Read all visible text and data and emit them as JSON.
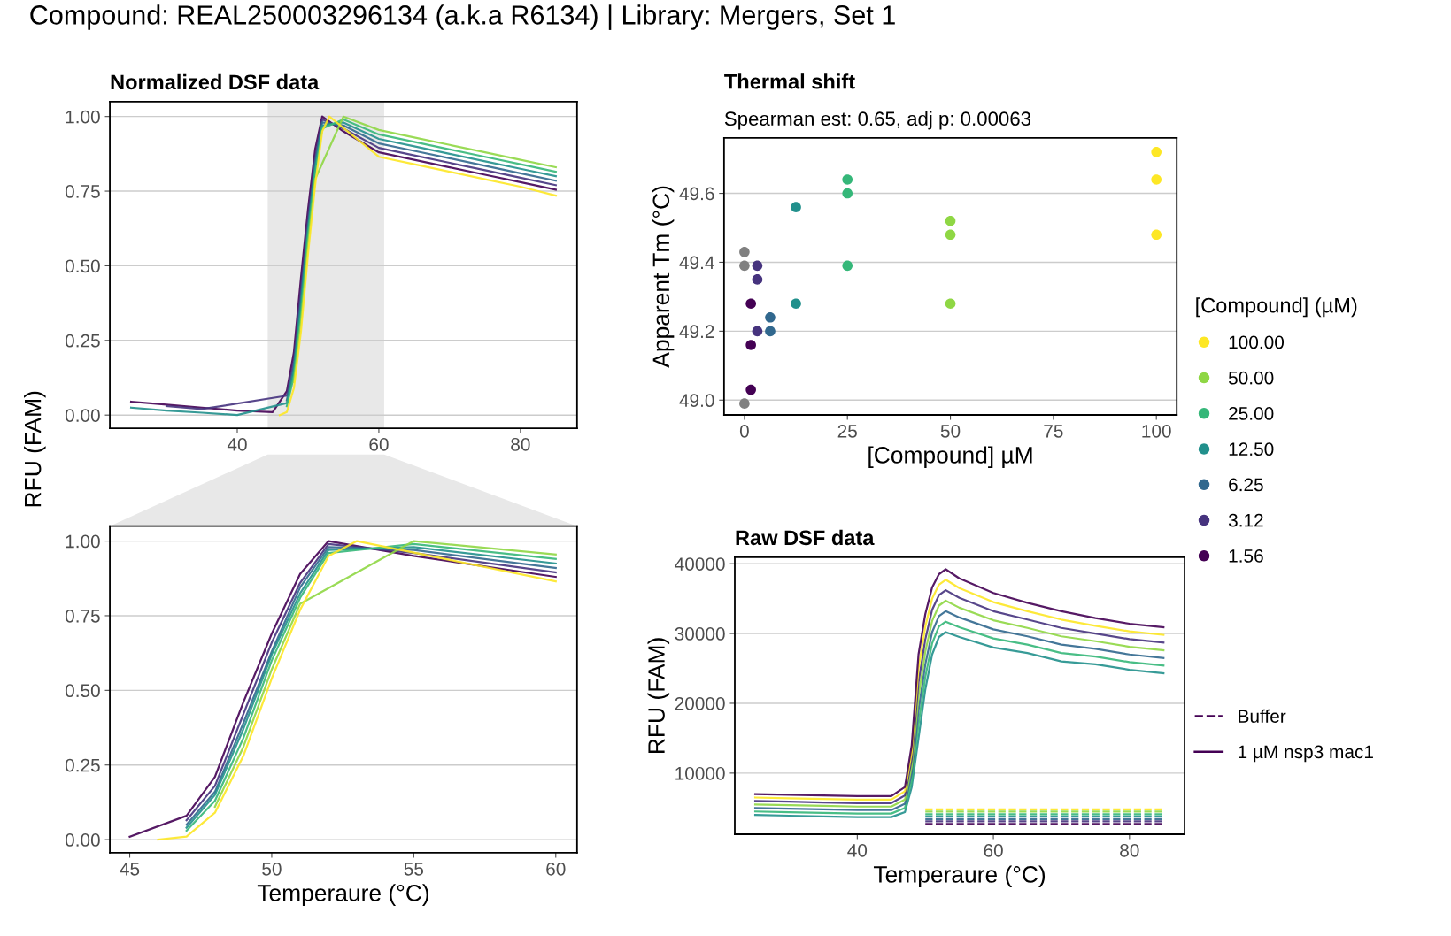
{
  "chart_data": [
    {
      "type": "line",
      "title": "Normalized DSF data",
      "ylabel": "RFU (FAM)",
      "annotations": [
        "Compound: REAL250003296134 (a.k.a R6134) | Library: Mergers, Set 1"
      ],
      "series": [
        {
          "color": "#440154",
          "x": [
            25,
            30,
            35,
            40,
            45,
            47,
            48,
            49,
            50,
            51,
            52,
            55,
            60,
            65,
            70,
            75,
            80,
            85
          ],
          "values": [
            0.045,
            0.035,
            0.025,
            0.015,
            0.01,
            0.08,
            0.21,
            0.46,
            0.69,
            0.89,
            1.0,
            0.95,
            0.88,
            0.855,
            0.83,
            0.805,
            0.78,
            0.755
          ]
        },
        {
          "color": "#46337e",
          "x": [
            30,
            35,
            47,
            48,
            49,
            50,
            51,
            52,
            55,
            60,
            65,
            70,
            75,
            80,
            85
          ],
          "values": [
            0.03,
            0.02,
            0.065,
            0.18,
            0.42,
            0.66,
            0.86,
            0.99,
            0.96,
            0.895,
            0.87,
            0.845,
            0.82,
            0.795,
            0.77
          ]
        },
        {
          "color": "#31688e",
          "x": [
            47,
            48,
            49,
            50,
            51,
            52,
            55,
            60,
            65,
            70,
            75,
            80,
            85
          ],
          "values": [
            0.05,
            0.16,
            0.39,
            0.63,
            0.845,
            0.98,
            0.97,
            0.91,
            0.885,
            0.86,
            0.835,
            0.81,
            0.785
          ]
        },
        {
          "color": "#21908c",
          "x": [
            25,
            30,
            35,
            40,
            47,
            48,
            49,
            50,
            51,
            52,
            55,
            60,
            65,
            70,
            75,
            80,
            85
          ],
          "values": [
            0.025,
            0.015,
            0.008,
            0.0,
            0.04,
            0.15,
            0.37,
            0.62,
            0.825,
            0.97,
            0.98,
            0.925,
            0.9,
            0.875,
            0.85,
            0.825,
            0.8
          ]
        },
        {
          "color": "#35b779",
          "x": [
            47,
            48,
            49,
            50,
            51,
            52,
            55,
            60,
            65,
            70,
            75,
            80,
            85
          ],
          "values": [
            0.03,
            0.13,
            0.34,
            0.6,
            0.81,
            0.96,
            0.99,
            0.94,
            0.915,
            0.89,
            0.865,
            0.84,
            0.815
          ]
        },
        {
          "color": "#8fd744",
          "x": [
            48,
            49,
            50,
            51,
            55,
            60,
            65,
            70,
            75,
            80,
            85
          ],
          "values": [
            0.11,
            0.31,
            0.57,
            0.79,
            1.0,
            0.955,
            0.93,
            0.905,
            0.88,
            0.855,
            0.83
          ]
        },
        {
          "color": "#fde725",
          "x": [
            46,
            47,
            48,
            49,
            50,
            51,
            52,
            53,
            60,
            65,
            70,
            75,
            80,
            85
          ],
          "values": [
            0.0,
            0.01,
            0.09,
            0.28,
            0.54,
            0.77,
            0.95,
            1.0,
            0.865,
            0.84,
            0.815,
            0.79,
            0.765,
            0.735
          ]
        }
      ],
      "xlim": [
        22,
        88
      ],
      "xticks": [
        40,
        60,
        80
      ],
      "ylim": [
        -0.044,
        1.05
      ],
      "yticks": [
        {
          "value": 0,
          "label": "0.00"
        },
        {
          "value": 0.25,
          "label": "0.25"
        },
        {
          "value": 0.5,
          "label": "0.50"
        },
        {
          "value": 0.75,
          "label": "0.75"
        },
        {
          "value": 1,
          "label": "1.00"
        }
      ],
      "bands": [
        {
          "axis": "x",
          "from": 44.3,
          "to": 60.75,
          "color": "#e8e8e8"
        }
      ],
      "grid": "y"
    },
    {
      "type": "line",
      "xlabel": "Temperaure (°C)",
      "series": [
        {
          "color": "#440154",
          "x": [
            45,
            47,
            48,
            49,
            50,
            51,
            52,
            55,
            60
          ],
          "values": [
            0.01,
            0.08,
            0.21,
            0.46,
            0.69,
            0.89,
            1.0,
            0.95,
            0.88
          ]
        },
        {
          "color": "#46337e",
          "x": [
            47,
            48,
            49,
            50,
            51,
            52,
            55,
            60
          ],
          "values": [
            0.065,
            0.18,
            0.42,
            0.66,
            0.86,
            0.99,
            0.96,
            0.895
          ]
        },
        {
          "color": "#31688e",
          "x": [
            47,
            48,
            49,
            50,
            51,
            52,
            55,
            60
          ],
          "values": [
            0.05,
            0.16,
            0.39,
            0.63,
            0.845,
            0.98,
            0.97,
            0.91
          ]
        },
        {
          "color": "#21908c",
          "x": [
            47,
            48,
            49,
            50,
            51,
            52,
            55,
            60
          ],
          "values": [
            0.04,
            0.15,
            0.37,
            0.62,
            0.825,
            0.97,
            0.98,
            0.925
          ]
        },
        {
          "color": "#35b779",
          "x": [
            47,
            48,
            49,
            50,
            51,
            52,
            55,
            60
          ],
          "values": [
            0.03,
            0.13,
            0.34,
            0.6,
            0.81,
            0.96,
            0.99,
            0.94
          ]
        },
        {
          "color": "#8fd744",
          "x": [
            48,
            49,
            50,
            51,
            55,
            60
          ],
          "values": [
            0.11,
            0.31,
            0.57,
            0.79,
            1.0,
            0.955
          ]
        },
        {
          "color": "#fde725",
          "x": [
            46,
            47,
            48,
            49,
            50,
            51,
            52,
            53,
            60
          ],
          "values": [
            0.0,
            0.01,
            0.09,
            0.28,
            0.54,
            0.77,
            0.95,
            1.0,
            0.865
          ]
        }
      ],
      "xlim": [
        44.3,
        60.75
      ],
      "xticks": [
        45,
        50,
        55,
        60
      ],
      "ylim": [
        -0.044,
        1.05
      ],
      "yticks": [
        {
          "value": 0,
          "label": "0.00"
        },
        {
          "value": 0.25,
          "label": "0.25"
        },
        {
          "value": 0.5,
          "label": "0.50"
        },
        {
          "value": 0.75,
          "label": "0.75"
        },
        {
          "value": 1,
          "label": "1.00"
        }
      ],
      "grid": "y"
    },
    {
      "type": "scatter",
      "title": "Thermal shift",
      "subtitle": "Spearman est: 0.65, adj p: 0.00063",
      "xlabel": "[Compound] µM",
      "ylabel": "Apparent Tm (°C)",
      "legend_title": "[Compound] (µM)",
      "legend": "right",
      "marker": "circle",
      "series": [
        {
          "name": "100.00",
          "color": "#fde725",
          "x": [
            100,
            100,
            100
          ],
          "values": [
            49.72,
            49.64,
            49.48
          ]
        },
        {
          "name": "50.00",
          "color": "#8fd744",
          "x": [
            50,
            50,
            50
          ],
          "values": [
            49.52,
            49.48,
            49.28
          ]
        },
        {
          "name": "25.00",
          "color": "#35b779",
          "x": [
            25,
            25,
            25
          ],
          "values": [
            49.64,
            49.6,
            49.39
          ]
        },
        {
          "name": "12.50",
          "color": "#21908c",
          "x": [
            12.5,
            12.5
          ],
          "values": [
            49.56,
            49.28
          ]
        },
        {
          "name": "6.25",
          "color": "#31688e",
          "x": [
            6.25,
            6.25
          ],
          "values": [
            49.24,
            49.2
          ]
        },
        {
          "name": "3.12",
          "color": "#46337e",
          "x": [
            3.12,
            3.12,
            3.12
          ],
          "values": [
            49.39,
            49.35,
            49.2
          ]
        },
        {
          "name": "1.56",
          "color": "#440154",
          "x": [
            1.56,
            1.56,
            1.56
          ],
          "values": [
            49.28,
            49.16,
            49.03
          ]
        },
        {
          "color": "#808080",
          "x": [
            0,
            0,
            0
          ],
          "values": [
            49.43,
            49.39,
            48.99
          ]
        }
      ],
      "xlim": [
        -4.95,
        104.95
      ],
      "xticks": [
        0,
        25,
        50,
        75,
        100
      ],
      "ylim": [
        48.957,
        49.761
      ],
      "yticks": [
        {
          "value": 49.0,
          "label": "49.0"
        },
        {
          "value": 49.2,
          "label": "49.2"
        },
        {
          "value": 49.4,
          "label": "49.4"
        },
        {
          "value": 49.6,
          "label": "49.6"
        }
      ],
      "grid": "y"
    },
    {
      "type": "line",
      "title": "Raw DSF data",
      "xlabel": "Temperaure (°C)",
      "ylabel": "RFU (FAM)",
      "legend": "right",
      "series": [
        {
          "name": "Buffer",
          "line_style": "dashed",
          "color": "#440154",
          "x": [
            50,
            55,
            60,
            65,
            70,
            75,
            80,
            85
          ],
          "values": [
            2700,
            2700,
            2700,
            2700,
            2700,
            2700,
            2700,
            2700
          ]
        },
        {
          "line_style": "dashed",
          "color": "#46337e",
          "x": [
            50,
            55,
            60,
            65,
            70,
            75,
            80,
            85
          ],
          "values": [
            3100,
            3100,
            3100,
            3100,
            3100,
            3100,
            3100,
            3100
          ]
        },
        {
          "line_style": "dashed",
          "color": "#31688e",
          "x": [
            50,
            55,
            60,
            65,
            70,
            75,
            80,
            85
          ],
          "values": [
            3400,
            3400,
            3400,
            3400,
            3400,
            3400,
            3400,
            3400
          ]
        },
        {
          "line_style": "dashed",
          "color": "#21908c",
          "x": [
            50,
            55,
            60,
            65,
            70,
            75,
            80,
            85
          ],
          "values": [
            3800,
            3800,
            3800,
            3800,
            3800,
            3800,
            3800,
            3800
          ]
        },
        {
          "line_style": "dashed",
          "color": "#35b779",
          "x": [
            50,
            55,
            60,
            65,
            70,
            75,
            80,
            85
          ],
          "values": [
            4100,
            4100,
            4100,
            4100,
            4100,
            4100,
            4100,
            4100
          ]
        },
        {
          "line_style": "dashed",
          "color": "#8fd744",
          "x": [
            50,
            55,
            60,
            65,
            70,
            75,
            80,
            85
          ],
          "values": [
            4500,
            4500,
            4500,
            4500,
            4500,
            4500,
            4500,
            4500
          ]
        },
        {
          "line_style": "dashed",
          "color": "#fde725",
          "x": [
            50,
            55,
            60,
            65,
            70,
            75,
            80,
            85
          ],
          "values": [
            4800,
            4800,
            4800,
            4800,
            4800,
            4800,
            4800,
            4800
          ]
        },
        {
          "line_style": "solid",
          "color": "#21908c",
          "x": [
            25,
            30,
            35,
            40,
            45,
            47,
            48,
            49,
            50,
            51,
            52,
            53,
            55,
            60,
            65,
            70,
            75,
            80,
            85
          ],
          "values": [
            4000,
            3900,
            3800,
            3700,
            3700,
            4400,
            8000,
            15000,
            22000,
            27000,
            29500,
            30200,
            29500,
            28000,
            27200,
            26000,
            25600,
            24800,
            24300
          ]
        },
        {
          "line_style": "solid",
          "color": "#35b779",
          "x": [
            25,
            30,
            35,
            40,
            45,
            47,
            48,
            49,
            50,
            51,
            52,
            53,
            55,
            60,
            65,
            70,
            75,
            80,
            85
          ],
          "values": [
            4500,
            4400,
            4300,
            4200,
            4200,
            5000,
            9000,
            17000,
            23800,
            28600,
            31000,
            31700,
            30900,
            29300,
            28400,
            27200,
            26700,
            25900,
            25400
          ]
        },
        {
          "line_style": "solid",
          "color": "#31688e",
          "x": [
            25,
            30,
            35,
            40,
            45,
            47,
            48,
            49,
            50,
            51,
            52,
            53,
            55,
            60,
            65,
            70,
            75,
            80,
            85
          ],
          "values": [
            5000,
            4900,
            4800,
            4700,
            4700,
            5600,
            10000,
            19000,
            25600,
            30200,
            32500,
            33200,
            32300,
            30600,
            29600,
            28400,
            27800,
            27000,
            26500
          ]
        },
        {
          "line_style": "solid",
          "color": "#8fd744",
          "x": [
            25,
            30,
            35,
            40,
            45,
            47,
            48,
            49,
            50,
            51,
            52,
            53,
            55,
            60,
            65,
            70,
            75,
            80,
            85
          ],
          "values": [
            5500,
            5400,
            5300,
            5200,
            5200,
            6200,
            11000,
            21000,
            27400,
            31800,
            34000,
            34700,
            33700,
            31900,
            30800,
            29600,
            28900,
            28100,
            27600
          ]
        },
        {
          "line_style": "solid",
          "color": "#46337e",
          "x": [
            25,
            30,
            35,
            40,
            45,
            47,
            48,
            49,
            50,
            51,
            52,
            53,
            55,
            60,
            65,
            70,
            75,
            80,
            85
          ],
          "values": [
            6000,
            5900,
            5800,
            5700,
            5700,
            6800,
            12000,
            23000,
            29200,
            33400,
            35500,
            36200,
            35100,
            33200,
            32000,
            30800,
            30000,
            29200,
            28700
          ]
        },
        {
          "line_style": "solid",
          "color": "#fde725",
          "x": [
            25,
            30,
            35,
            40,
            45,
            47,
            48,
            49,
            50,
            51,
            52,
            53,
            55,
            60,
            65,
            70,
            75,
            80,
            85
          ],
          "values": [
            6500,
            6400,
            6300,
            6200,
            6200,
            7400,
            13000,
            25000,
            31000,
            35000,
            37000,
            37700,
            36500,
            34500,
            33200,
            32000,
            31100,
            30300,
            29800
          ]
        },
        {
          "name": "1 µM nsp3 mac1",
          "line_style": "solid",
          "color": "#440154",
          "x": [
            25,
            30,
            35,
            40,
            45,
            47,
            48,
            49,
            50,
            51,
            52,
            53,
            55,
            60,
            65,
            70,
            75,
            80,
            85
          ],
          "values": [
            7000,
            6900,
            6800,
            6700,
            6700,
            8000,
            14000,
            27000,
            32800,
            36600,
            38500,
            39200,
            37900,
            35800,
            34400,
            33200,
            32200,
            31400,
            30900
          ]
        }
      ],
      "xlim": [
        22,
        88.1
      ],
      "xticks": [
        40,
        60,
        80
      ],
      "ylim": [
        1240,
        40930
      ],
      "yticks": [
        10000,
        20000,
        30000,
        40000
      ],
      "grid": "y"
    }
  ]
}
